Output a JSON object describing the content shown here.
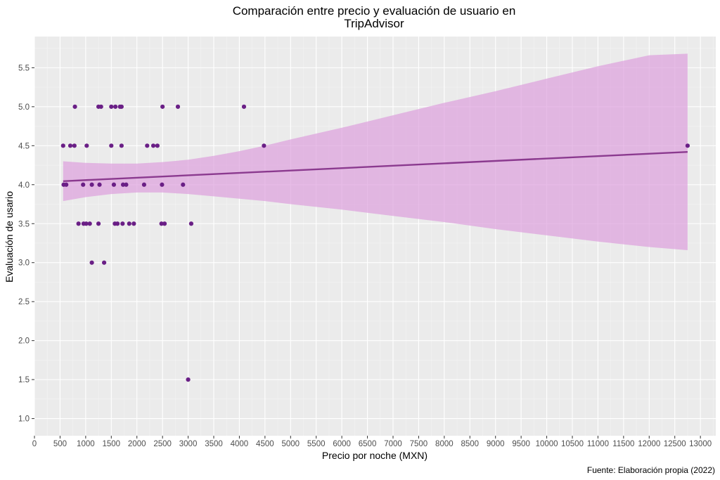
{
  "chart_data": {
    "type": "scatter",
    "title": "Comparación entre precio y evaluación de usuario en TripAdvisor",
    "title_lines": [
      "Comparación entre precio y evaluación de usuario en",
      "TripAdvisor"
    ],
    "xlabel": "Precio por noche (MXN)",
    "ylabel": "Evaluación de usario",
    "caption": "Fuente: Elaboración propia (2022)",
    "xlim": [
      0,
      13300
    ],
    "ylim": [
      0.78,
      5.9
    ],
    "x_ticks": [
      0,
      500,
      1000,
      1500,
      2000,
      2500,
      3000,
      3500,
      4000,
      4500,
      5000,
      5500,
      6000,
      6500,
      7000,
      7500,
      8000,
      8500,
      9000,
      9500,
      10000,
      10500,
      11000,
      11500,
      12000,
      12500,
      13000
    ],
    "x_tick_labels": [
      "0",
      "500",
      "1000",
      "1500",
      "2000",
      "2500",
      "3000",
      "3500",
      "4000",
      "4500",
      "5000",
      "5500",
      "6000",
      "6500",
      "7000",
      "7500",
      "8000",
      "8500",
      "9000",
      "9500",
      "10000",
      "10500",
      "11000",
      "11500",
      "12000",
      "12500",
      "13000"
    ],
    "y_ticks": [
      1.0,
      1.5,
      2.0,
      2.5,
      3.0,
      3.5,
      4.0,
      4.5,
      5.0,
      5.5
    ],
    "y_tick_labels": [
      "1.0",
      "1.5",
      "2.0",
      "2.5",
      "3.0",
      "3.5",
      "4.0",
      "4.5",
      "5.0",
      "5.5"
    ],
    "grid": true,
    "colors": {
      "panel": "#ebebeb",
      "grid_major": "#ffffff",
      "points": "#6a1f86",
      "fit_line": "#8b3a8f",
      "ribbon": "#dda0dd"
    },
    "points": [
      {
        "x": 560,
        "y": 4.5
      },
      {
        "x": 700,
        "y": 4.5
      },
      {
        "x": 780,
        "y": 4.5
      },
      {
        "x": 1020,
        "y": 4.5
      },
      {
        "x": 1500,
        "y": 4.5
      },
      {
        "x": 1700,
        "y": 4.5
      },
      {
        "x": 2200,
        "y": 4.5
      },
      {
        "x": 2320,
        "y": 4.5
      },
      {
        "x": 2400,
        "y": 4.5
      },
      {
        "x": 4480,
        "y": 4.5
      },
      {
        "x": 12750,
        "y": 4.5
      },
      {
        "x": 790,
        "y": 5.0
      },
      {
        "x": 1250,
        "y": 5.0
      },
      {
        "x": 1300,
        "y": 5.0
      },
      {
        "x": 1500,
        "y": 5.0
      },
      {
        "x": 1580,
        "y": 5.0
      },
      {
        "x": 1670,
        "y": 5.0
      },
      {
        "x": 1700,
        "y": 5.0
      },
      {
        "x": 2500,
        "y": 5.0
      },
      {
        "x": 2800,
        "y": 5.0
      },
      {
        "x": 4090,
        "y": 5.0
      },
      {
        "x": 570,
        "y": 4.0
      },
      {
        "x": 620,
        "y": 4.0
      },
      {
        "x": 950,
        "y": 4.0
      },
      {
        "x": 1120,
        "y": 4.0
      },
      {
        "x": 1270,
        "y": 4.0
      },
      {
        "x": 1550,
        "y": 4.0
      },
      {
        "x": 1730,
        "y": 4.0
      },
      {
        "x": 1790,
        "y": 4.0
      },
      {
        "x": 2140,
        "y": 4.0
      },
      {
        "x": 2490,
        "y": 4.0
      },
      {
        "x": 2900,
        "y": 4.0
      },
      {
        "x": 860,
        "y": 3.5
      },
      {
        "x": 960,
        "y": 3.5
      },
      {
        "x": 1010,
        "y": 3.5
      },
      {
        "x": 1080,
        "y": 3.5
      },
      {
        "x": 1250,
        "y": 3.5
      },
      {
        "x": 1570,
        "y": 3.5
      },
      {
        "x": 1620,
        "y": 3.5
      },
      {
        "x": 1720,
        "y": 3.5
      },
      {
        "x": 1850,
        "y": 3.5
      },
      {
        "x": 1940,
        "y": 3.5
      },
      {
        "x": 2480,
        "y": 3.5
      },
      {
        "x": 2540,
        "y": 3.5
      },
      {
        "x": 3060,
        "y": 3.5
      },
      {
        "x": 1120,
        "y": 3.0
      },
      {
        "x": 1360,
        "y": 3.0
      },
      {
        "x": 3000,
        "y": 1.5
      }
    ],
    "fit_line": {
      "x": [
        560,
        12750
      ],
      "y": [
        4.045,
        4.42
      ]
    },
    "confidence_band": {
      "x": [
        560,
        1000,
        1500,
        2000,
        2500,
        3000,
        3500,
        4000,
        4500,
        5000,
        6000,
        7000,
        8000,
        9000,
        10000,
        11000,
        12000,
        12750
      ],
      "lower": [
        3.79,
        3.84,
        3.88,
        3.9,
        3.9,
        3.88,
        3.85,
        3.82,
        3.79,
        3.75,
        3.68,
        3.6,
        3.52,
        3.43,
        3.35,
        3.27,
        3.2,
        3.16
      ],
      "upper": [
        4.3,
        4.28,
        4.27,
        4.27,
        4.29,
        4.32,
        4.37,
        4.43,
        4.5,
        4.58,
        4.73,
        4.89,
        5.05,
        5.2,
        5.36,
        5.52,
        5.66,
        5.68
      ]
    }
  }
}
